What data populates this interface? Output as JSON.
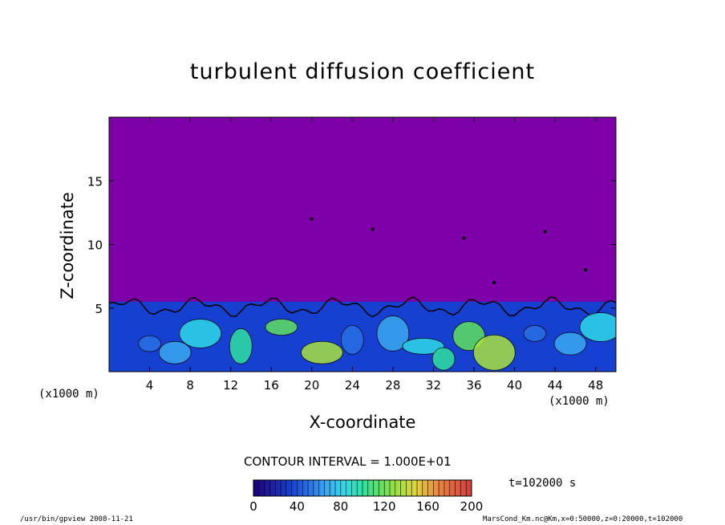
{
  "chart_data": {
    "type": "heatmap",
    "title": "turbulent diffusion coefficient",
    "xlabel": "X-coordinate",
    "ylabel": "Z-coordinate",
    "x_unit_left": "(x1000 m)",
    "x_unit_right": "(x1000 m)",
    "xlim": [
      0,
      50
    ],
    "ylim": [
      0,
      20
    ],
    "x_ticks": [
      4,
      8,
      12,
      16,
      20,
      24,
      28,
      32,
      36,
      40,
      44,
      48
    ],
    "x_tick_labels": [
      "4",
      "8",
      "12",
      "16",
      "20",
      "24",
      "28",
      "32",
      "36",
      "40",
      "44",
      "48"
    ],
    "y_ticks": [
      5,
      10,
      15
    ],
    "y_tick_labels": [
      "5",
      "10",
      "15"
    ],
    "contour_interval_text": "CONTOUR INTERVAL = 1.000E+01",
    "contour_interval": 10,
    "colorbar": {
      "min": 0,
      "max": 200,
      "tick_values": [
        0,
        40,
        80,
        120,
        160,
        200
      ],
      "tick_labels": [
        "0",
        "40",
        "80",
        "120",
        "160",
        "200"
      ],
      "colors": [
        "#1a0080",
        "#1e1e9e",
        "#1540d0",
        "#2a6ee6",
        "#3aa8f0",
        "#30d8e8",
        "#30e0a0",
        "#60e060",
        "#a8e040",
        "#e0d040",
        "#e89040",
        "#e06040",
        "#d04040"
      ]
    },
    "background_value_color": "#7d00a8",
    "boundary_layer_top_z": 5.5,
    "time_label": "t=102000 s"
  },
  "footer": {
    "left": "/usr/bin/gpview   2008-11-21",
    "right": "MarsCond_Km.nc@Km,x=0:50000,z=0:20000,t=102000"
  }
}
